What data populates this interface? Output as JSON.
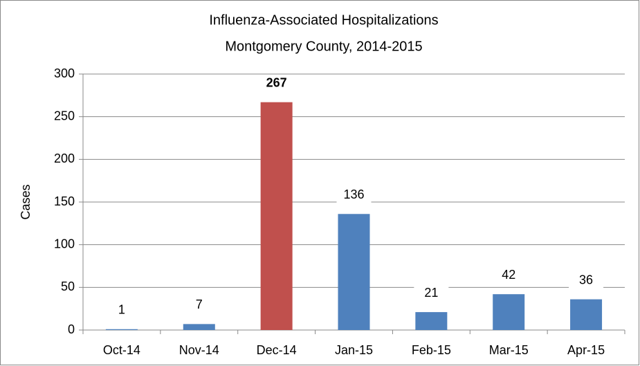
{
  "chart_data": {
    "type": "bar",
    "title": "Influenza-Associated Hospitalizations",
    "subtitle": "Montgomery County, 2014-2015",
    "y_label": "Cases",
    "categories": [
      "Oct-14",
      "Nov-14",
      "Dec-14",
      "Jan-15",
      "Feb-15",
      "Mar-15",
      "Apr-15"
    ],
    "values": [
      1,
      7,
      267,
      136,
      21,
      42,
      36
    ],
    "colors": [
      "#4f81bd",
      "#4f81bd",
      "#c0504d",
      "#4f81bd",
      "#4f81bd",
      "#4f81bd",
      "#4f81bd"
    ],
    "ylim": [
      0,
      300
    ],
    "yticks": [
      0,
      50,
      100,
      150,
      200,
      250,
      300
    ],
    "grid": true
  }
}
